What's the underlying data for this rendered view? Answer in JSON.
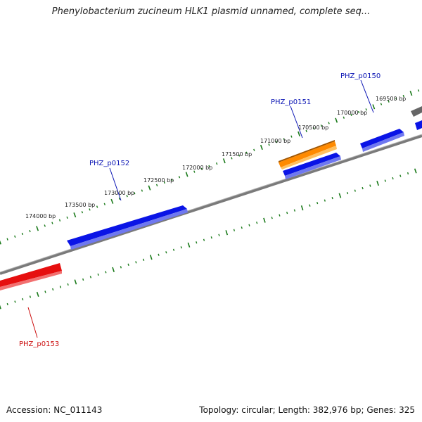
{
  "title": "Phenylobacterium zucineum HLK1 plasmid unnamed, complete seq...",
  "footer": {
    "accession": "Accession: NC_011143",
    "summary": "Topology: circular; Length: 382,976 bp; Genes: 325"
  },
  "colors": {
    "gene_forward": "#0a14e6",
    "gene_reverse": "#e60f0f",
    "gene_highlight": "#ff8a00",
    "backbone": "#7a7a7a",
    "ticks": "#1a7a1a",
    "text": "#222222",
    "forward_label": "#0a14b4",
    "reverse_label": "#cc0f0f"
  },
  "tick_labels": [
    {
      "text": "169500 bp"
    },
    {
      "text": "170000 bp"
    },
    {
      "text": "170500 bp"
    },
    {
      "text": "171000 bp"
    },
    {
      "text": "171500 bp"
    },
    {
      "text": "172000 bp"
    },
    {
      "text": "172500 bp"
    },
    {
      "text": "173000 bp"
    },
    {
      "text": "173500 bp"
    },
    {
      "text": "174000 bp"
    }
  ],
  "genes": [
    {
      "label": "PHZ_p0150",
      "strand": "forward"
    },
    {
      "label": "PHZ_p0151",
      "strand": "forward"
    },
    {
      "label": "PHZ_p0152",
      "strand": "forward"
    },
    {
      "label": "PHZ_p0153",
      "strand": "reverse"
    }
  ]
}
